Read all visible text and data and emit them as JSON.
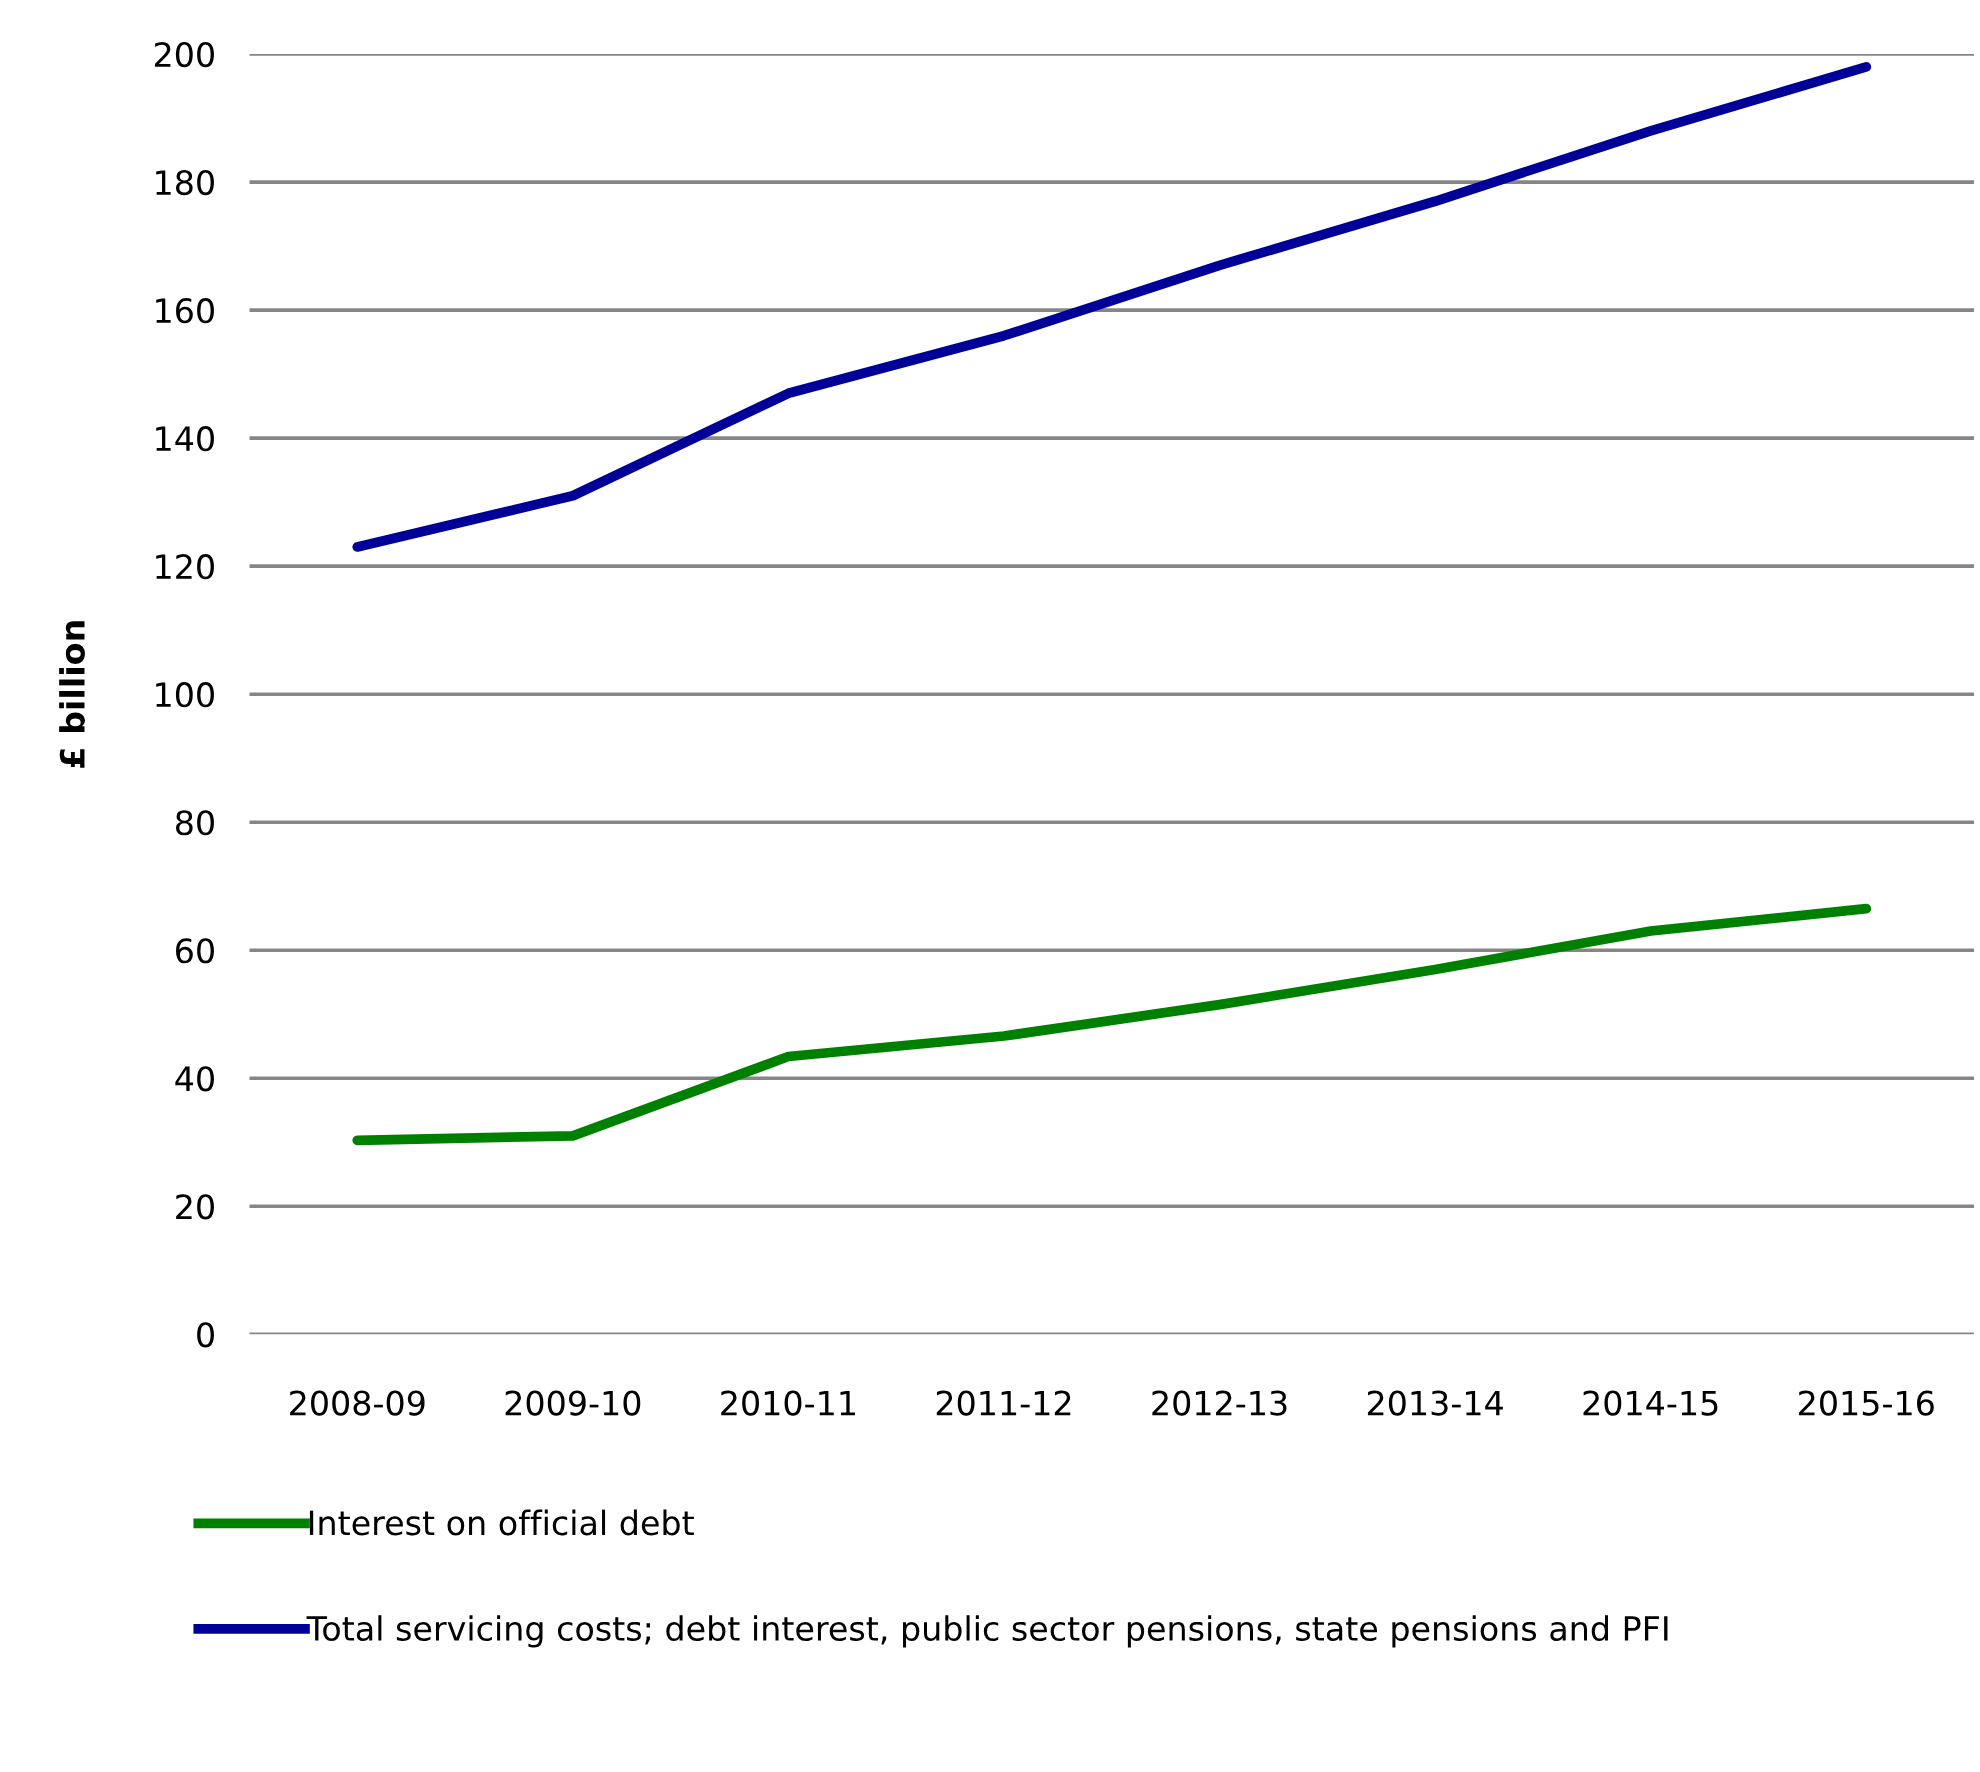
{
  "chart_data": {
    "type": "line",
    "ylabel": "£ billion",
    "categories": [
      "2008-09",
      "2009-10",
      "2010-11",
      "2011-12",
      "2012-13",
      "2013-14",
      "2014-15",
      "2015-16"
    ],
    "series": [
      {
        "name": "Interest on official debt",
        "color": "#008000",
        "values": [
          30.3,
          31,
          43.4,
          46.6,
          51.5,
          57,
          63,
          66.5
        ]
      },
      {
        "name": "Total servicing costs; debt interest, public sector pensions, state pensions and PFI",
        "color": "#000099",
        "values": [
          123,
          131,
          147,
          156,
          167,
          177,
          188,
          198
        ]
      }
    ],
    "ylim": [
      0,
      200
    ],
    "yticks": [
      0,
      20,
      40,
      60,
      80,
      100,
      120,
      140,
      160,
      180,
      200
    ],
    "grid": "y",
    "legend": "bottom",
    "marker": "none",
    "line_style": "solid"
  }
}
